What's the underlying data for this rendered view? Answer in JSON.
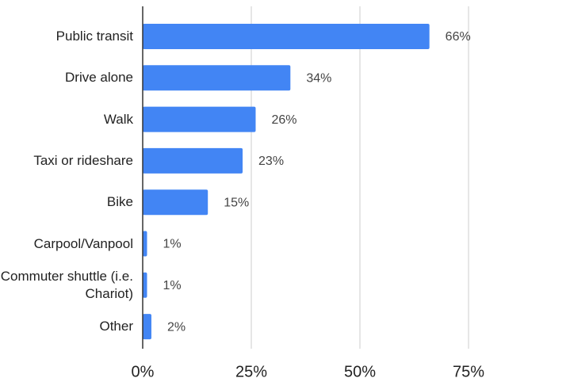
{
  "chart_data": {
    "type": "hbar",
    "categories": [
      "Public transit",
      "Drive alone",
      "Walk",
      "Taxi or rideshare",
      "Bike",
      "Carpool/Vanpool",
      "Commuter shuttle (i.e. Chariot)",
      "Other"
    ],
    "values": [
      66,
      34,
      26,
      23,
      15,
      1,
      1,
      2
    ],
    "value_labels": [
      "66%",
      "34%",
      "26%",
      "23%",
      "15%",
      "1%",
      "1%",
      "2%"
    ],
    "color": "#4285f4",
    "xlim": [
      0,
      75
    ],
    "xticks": [
      {
        "value": 0,
        "label": "0%"
      },
      {
        "value": 25,
        "label": "25%"
      },
      {
        "value": 50,
        "label": "50%"
      },
      {
        "value": 75,
        "label": "75%"
      }
    ],
    "grid": true
  }
}
